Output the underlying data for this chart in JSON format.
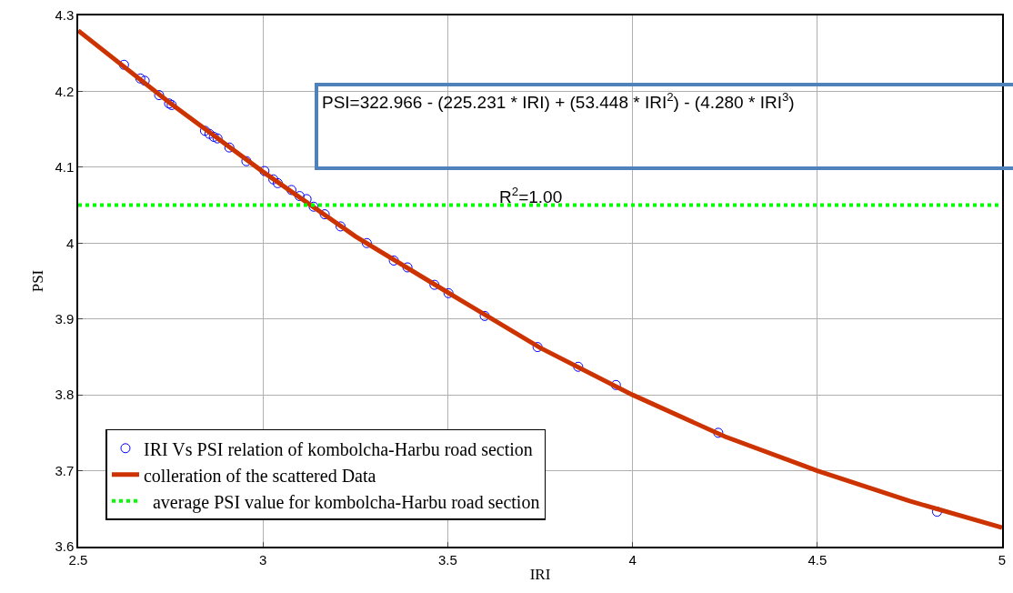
{
  "chart_data": {
    "type": "scatter",
    "xlabel": "IRI",
    "ylabel": "PSI",
    "xlim": [
      2.5,
      5
    ],
    "xticks": [
      2.5,
      3,
      3.5,
      4,
      4.5,
      5
    ],
    "ylim": [
      3.6,
      4.3
    ],
    "yticks": [
      3.6,
      3.7,
      3.8,
      3.9,
      4,
      4.1,
      4.2,
      4.3
    ],
    "grid": true,
    "legend": "bottom left",
    "marker": "circle",
    "series": [
      {
        "name": "IRI Vs PSI relation of kombolcha-Harbu road section",
        "color": "#0000ff",
        "x": [
          2.624,
          2.668,
          2.68,
          2.719,
          2.746,
          2.753,
          2.843,
          2.855,
          2.867,
          2.877,
          2.909,
          2.955,
          3.004,
          3.028,
          3.04,
          3.077,
          3.099,
          3.118,
          3.137,
          3.167,
          3.21,
          3.281,
          3.354,
          3.391,
          3.464,
          3.502,
          3.6,
          3.743,
          3.853,
          3.955,
          4.232,
          4.824
        ],
        "values": [
          4.235,
          4.217,
          4.214,
          4.195,
          4.184,
          4.182,
          4.148,
          4.144,
          4.14,
          4.138,
          4.126,
          4.108,
          4.095,
          4.084,
          4.079,
          4.07,
          4.062,
          4.058,
          4.048,
          4.038,
          4.022,
          4,
          3.977,
          3.968,
          3.945,
          3.934,
          3.904,
          3.863,
          3.837,
          3.813,
          3.75,
          3.646
        ]
      },
      {
        "name": "colleration of the scattered Data",
        "type": "line",
        "color": "#cc3300",
        "marker": "none",
        "line_style": "solid",
        "x": [
          2.5,
          2.75,
          3,
          3.25,
          3.5,
          3.75,
          4,
          4.25,
          4.5,
          4.75,
          5
        ],
        "values": [
          4.28,
          4.184,
          4.094,
          4.009,
          3.935,
          3.862,
          3.8,
          3.745,
          3.7,
          3.66,
          3.625
        ]
      }
    ],
    "ref_lines": [
      {
        "axis": "y",
        "value": 4.05,
        "label": "  average PSI value for kombolcha-Harbu road section",
        "color": "#00ff00",
        "line_style": "dotted"
      }
    ],
    "annotations": [
      "PSI=322.966 - (225.231 * IRI) + (53.448 * IRI$^{2}$) - (4.280 * IRI$^{3}$)",
      "R$^{2}$=1.00"
    ]
  }
}
